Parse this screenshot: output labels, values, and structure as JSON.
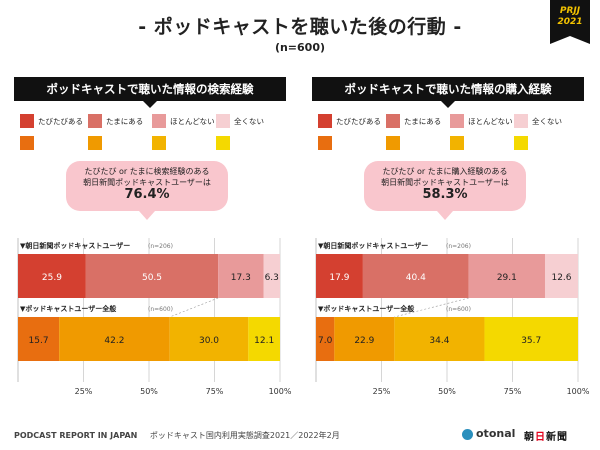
{
  "header": {
    "title": "- ポッドキャストを聴いた後の行動 -",
    "subtitle": "(n=600)",
    "badge_line1": "PRJJ",
    "badge_line2": "2021"
  },
  "footer": {
    "report": "PODCAST REPORT IN JAPAN",
    "survey": "ポッドキャスト国内利用実態調査2021／2022年2月",
    "logo_otonal": "otonal",
    "logo_asahi_1": "朝",
    "logo_asahi_2": "日",
    "logo_asahi_3": "新聞"
  },
  "panels": [
    {
      "heading": "ポッドキャストで聴いた情報の検索経験",
      "legend": [
        "たびたびある",
        "たまにある",
        "ほとんどない",
        "全くない"
      ],
      "bubble_line1": "たびたび or たまに検索経験のある",
      "bubble_line2": "朝日新聞ポッドキャストユーザーは",
      "bubble_value": "76.4%"
    },
    {
      "heading": "ポッドキャストで聴いた情報の購入経験",
      "legend": [
        "たびたびある",
        "たまにある",
        "ほとんどない",
        "全くない"
      ],
      "bubble_line1": "たびたび or たまに購入経験のある",
      "bubble_line2": "朝日新聞ポッドキャストユーザーは",
      "bubble_value": "58.3%"
    }
  ],
  "colors": {
    "asahi": [
      "#d44030",
      "#d97066",
      "#e89a9a",
      "#f6cfd2"
    ],
    "all": [
      "#e86e10",
      "#f09a00",
      "#f2b300",
      "#f4d900"
    ]
  },
  "chart_data": [
    {
      "type": "bar",
      "orientation": "horizontal-stacked-100",
      "title": "ポッドキャストで聴いた情報の検索経験",
      "categories": [
        "▼朝日新聞ポッドキャストユーザー",
        "▼ポッドキャストユーザー全般"
      ],
      "category_n": [
        "(n=206)",
        "(n=600)"
      ],
      "series": [
        {
          "name": "たびたびある",
          "values": [
            25.9,
            15.7
          ]
        },
        {
          "name": "たまにある",
          "values": [
            50.5,
            42.2
          ]
        },
        {
          "name": "ほとんどない",
          "values": [
            17.3,
            30.0
          ]
        },
        {
          "name": "全くない",
          "values": [
            6.3,
            12.1
          ]
        }
      ],
      "value_labels": [
        [
          "25.9",
          "50.5",
          "17.3",
          "6.3"
        ],
        [
          "15.7",
          "42.2",
          "30.0",
          "12.1"
        ]
      ],
      "x_ticks": [
        "25%",
        "50%",
        "75%",
        "100%"
      ],
      "xlim": [
        0,
        100
      ],
      "grid": true,
      "legend_position": "top"
    },
    {
      "type": "bar",
      "orientation": "horizontal-stacked-100",
      "title": "ポッドキャストで聴いた情報の購入経験",
      "categories": [
        "▼朝日新聞ポッドキャストユーザー",
        "▼ポッドキャストユーザー全般"
      ],
      "category_n": [
        "(n=206)",
        "(n=600)"
      ],
      "series": [
        {
          "name": "たびたびある",
          "values": [
            17.9,
            7.0
          ]
        },
        {
          "name": "たまにある",
          "values": [
            40.4,
            22.9
          ]
        },
        {
          "name": "ほとんどない",
          "values": [
            29.1,
            34.4
          ]
        },
        {
          "name": "全くない",
          "values": [
            12.6,
            35.7
          ]
        }
      ],
      "value_labels": [
        [
          "17.9",
          "40.4",
          "29.1",
          "12.6"
        ],
        [
          "7.0",
          "22.9",
          "34.4",
          "35.7"
        ]
      ],
      "x_ticks": [
        "25%",
        "50%",
        "75%",
        "100%"
      ],
      "xlim": [
        0,
        100
      ],
      "grid": true,
      "legend_position": "top"
    }
  ]
}
